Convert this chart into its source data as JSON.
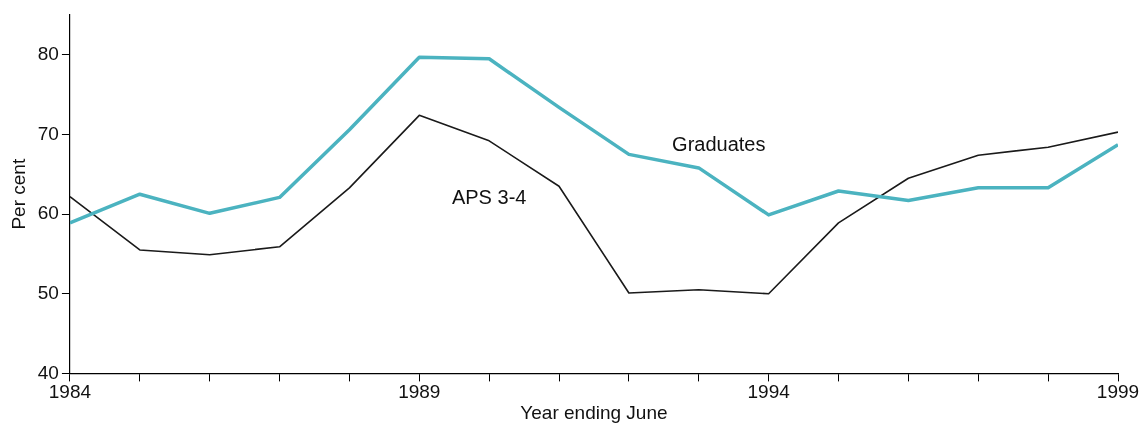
{
  "chart_data": {
    "type": "line",
    "xlabel": "Year ending June",
    "ylabel": "Per cent",
    "x": [
      1984,
      1985,
      1986,
      1987,
      1988,
      1989,
      1990,
      1991,
      1992,
      1993,
      1994,
      1995,
      1996,
      1997,
      1998,
      1999
    ],
    "series": [
      {
        "name": "Graduates",
        "color": "#4bb3c0",
        "values": [
          58.9,
          62.5,
          60.1,
          62.1,
          70.6,
          79.7,
          79.5,
          73.4,
          67.5,
          65.8,
          59.9,
          62.9,
          61.7,
          63.3,
          63.3,
          68.7
        ]
      },
      {
        "name": "APS 3-4",
        "color": "#1a1a1a",
        "values": [
          62.2,
          55.5,
          54.9,
          55.9,
          63.3,
          72.4,
          69.2,
          63.5,
          50.1,
          50.5,
          50.0,
          58.9,
          64.5,
          67.4,
          68.4,
          70.3
        ]
      }
    ],
    "xlim": [
      1984,
      1999
    ],
    "xticks": [
      1984,
      {
        "value": 1985,
        "label": null
      },
      {
        "value": 1986,
        "label": null
      },
      {
        "value": 1987,
        "label": null
      },
      {
        "value": 1988,
        "label": null
      },
      1989,
      {
        "value": 1990,
        "label": null
      },
      {
        "value": 1991,
        "label": null
      },
      {
        "value": 1992,
        "label": null
      },
      {
        "value": 1993,
        "label": null
      },
      1994,
      {
        "value": 1995,
        "label": null
      },
      {
        "value": 1996,
        "label": null
      },
      {
        "value": 1997,
        "label": null
      },
      {
        "value": 1998,
        "label": null
      },
      1999
    ],
    "ylim": [
      40,
      85
    ],
    "yticks": [
      40,
      50,
      60,
      70,
      80
    ],
    "grid": false,
    "legend": false,
    "marker": "none",
    "line_style": "solid"
  }
}
